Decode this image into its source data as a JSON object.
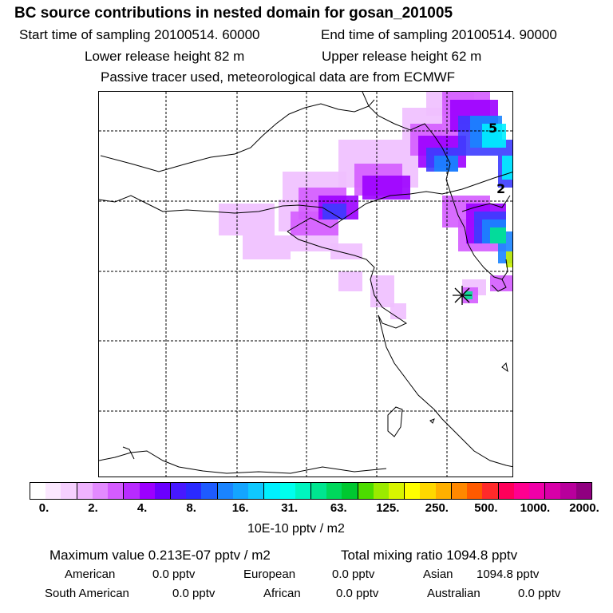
{
  "title": "BC  source contributions in nested domain for gosan_201005",
  "header": {
    "start_time": "Start time of sampling 20100514. 60000",
    "end_time": "End time of sampling 20100514. 90000",
    "lower_release": "Lower release height   82 m",
    "upper_release": "Upper release height   62 m",
    "tracer_note": "Passive tracer used, meteorological data are from ECMWF"
  },
  "map": {
    "contour_labels": [
      "5",
      "2"
    ],
    "receptor_marker": "receptor-star"
  },
  "colorbar": {
    "ticks": [
      "0.",
      "2.",
      "4.",
      "8.",
      "16.",
      "31.",
      "63.",
      "125.",
      "250.",
      "500.",
      "1000.",
      "2000."
    ],
    "unit": "10E-10 pptv / m2",
    "colors": [
      "#ffffff",
      "#fbe8ff",
      "#f6d0ff",
      "#efb3ff",
      "#e38aff",
      "#d45cff",
      "#b82bff",
      "#9c00ff",
      "#6a00ff",
      "#4718ff",
      "#2a2aff",
      "#1e5bff",
      "#1a84ff",
      "#14a5ff",
      "#0fc8ff",
      "#00f0ff",
      "#00ffee",
      "#00f5c0",
      "#00e690",
      "#00d85c",
      "#00c830",
      "#4cdc00",
      "#9bea00",
      "#d8f500",
      "#ffff00",
      "#ffd800",
      "#ffb000",
      "#ff8800",
      "#ff5a00",
      "#ff2a2a",
      "#ff005a",
      "#ff0090",
      "#f000a8",
      "#d800a8",
      "#b8009c",
      "#900080"
    ]
  },
  "footer": {
    "maximum_value": "Maximum value  0.213E-07 pptv / m2",
    "total_mixing_ratio": "Total mixing ratio     1094.8 pptv",
    "regions": [
      {
        "name": "American",
        "value": "0.0 pptv"
      },
      {
        "name": "European",
        "value": "0.0 pptv"
      },
      {
        "name": "Asian",
        "value": "1094.8 pptv"
      },
      {
        "name": "South American",
        "value": "0.0 pptv"
      },
      {
        "name": "African",
        "value": "0.0 pptv"
      },
      {
        "name": "Australian",
        "value": "0.0 pptv"
      }
    ]
  }
}
